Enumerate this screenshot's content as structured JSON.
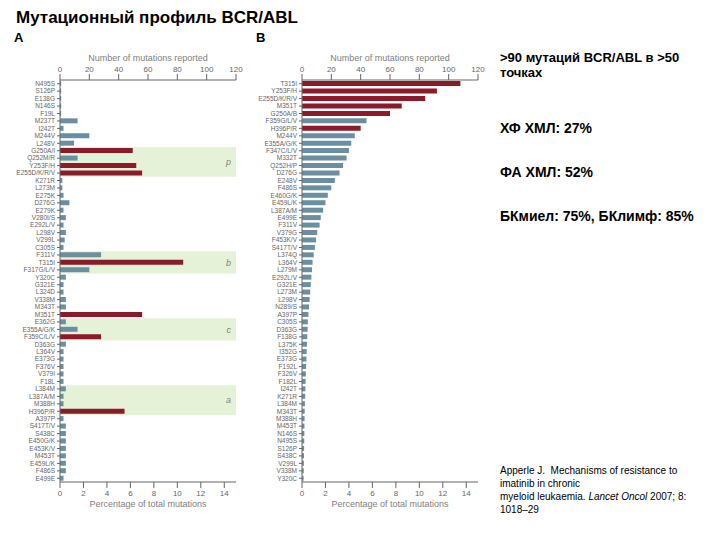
{
  "title": "Мутационный профиль BCR/ABL",
  "subtitle": ">90 мутаций BCR/ABL в >50 точках",
  "annotations": [
    "ХФ ХМЛ: 27%",
    "ФА ХМЛ: 52%",
    "БКмиел: 75%, БКлимф: 85%"
  ],
  "citation": [
    [
      "Apperle J.  Mechanisms of resistance to imatinib in chronic"
    ],
    [
      "myeloid leukaemia. ",
      "Lancet Oncol",
      " 2007; 8: 1018–29"
    ]
  ],
  "chart_data": [
    {
      "type": "bar",
      "orientation": "horizontal",
      "title": "A",
      "xlabel": "Percentage of total mutations",
      "x2label": "Number of mutations reported",
      "xlim": [
        0,
        15
      ],
      "xticks": [
        0,
        2,
        4,
        6,
        8,
        10,
        12,
        14
      ],
      "x2lim": [
        0,
        120
      ],
      "x2ticks": [
        0,
        20,
        40,
        60,
        80,
        100,
        120
      ],
      "grid": false,
      "categories": [
        "N495S",
        "S126P",
        "E138G",
        "N146S",
        "F19L",
        "M237T",
        "I242T",
        "M244V",
        "L248V",
        "G250A/I",
        "Q252M/R",
        "Y253F/H",
        "E255D/K/R/V",
        "K271R",
        "L273M",
        "E275K",
        "D276G",
        "E279K",
        "V280I/S",
        "E292L/V",
        "L298V",
        "V299L",
        "C305S",
        "F311V",
        "T315I",
        "F317G/L/V",
        "Y320C",
        "G321E",
        "L324D",
        "V338M",
        "M343T",
        "M351T",
        "E362G",
        "E355A/G/K",
        "F359C/L/V",
        "D363G",
        "L364V",
        "E373G",
        "F376V",
        "V379I",
        "F18L",
        "L384M",
        "L387A/M",
        "M388H",
        "H396P/R",
        "A397P",
        "S417T/V",
        "S438C",
        "E450G/K",
        "E453K/V",
        "M453T",
        "E459L/K",
        "F486S",
        "E499E"
      ],
      "values": [
        0.1,
        0.1,
        0.1,
        0.1,
        0.1,
        1.5,
        0.3,
        2.5,
        1.2,
        6.2,
        1.5,
        6.5,
        7.0,
        0.2,
        0.2,
        0.3,
        0.8,
        0.3,
        0.5,
        0.3,
        0.5,
        0.4,
        0.3,
        3.5,
        10.5,
        2.5,
        0.5,
        0.3,
        0.3,
        0.5,
        0.5,
        7.0,
        0.5,
        1.5,
        3.5,
        0.5,
        0.3,
        0.3,
        0.3,
        0.3,
        0.3,
        0.5,
        0.3,
        0.3,
        5.5,
        0.3,
        0.5,
        0.5,
        0.5,
        0.5,
        0.5,
        0.5,
        0.5,
        0.3
      ],
      "colors": [
        "#6b8fa0",
        "#6b8fa0",
        "#6b8fa0",
        "#6b8fa0",
        "#6b8fa0",
        "#6b8fa0",
        "#6b8fa0",
        "#6b8fa0",
        "#6b8fa0",
        "#8b1a2a",
        "#6b8fa0",
        "#8b1a2a",
        "#8b1a2a",
        "#6b8fa0",
        "#6b8fa0",
        "#6b8fa0",
        "#6b8fa0",
        "#6b8fa0",
        "#6b8fa0",
        "#6b8fa0",
        "#6b8fa0",
        "#6b8fa0",
        "#6b8fa0",
        "#6b8fa0",
        "#8b1a2a",
        "#6b8fa0",
        "#6b8fa0",
        "#6b8fa0",
        "#6b8fa0",
        "#6b8fa0",
        "#6b8fa0",
        "#8b1a2a",
        "#6b8fa0",
        "#6b8fa0",
        "#8b1a2a",
        "#6b8fa0",
        "#6b8fa0",
        "#6b8fa0",
        "#6b8fa0",
        "#6b8fa0",
        "#6b8fa0",
        "#6b8fa0",
        "#6b8fa0",
        "#6b8fa0",
        "#8b1a2a",
        "#6b8fa0",
        "#6b8fa0",
        "#6b8fa0",
        "#6b8fa0",
        "#6b8fa0",
        "#6b8fa0",
        "#6b8fa0",
        "#6b8fa0",
        "#6b8fa0"
      ],
      "highlights": [
        {
          "start": 9,
          "end": 12,
          "label": "p",
          "color": "#dcedc8"
        },
        {
          "start": 23,
          "end": 25,
          "label": "b",
          "color": "#dcedc8"
        },
        {
          "start": 32,
          "end": 34,
          "label": "c",
          "color": "#dcedc8"
        },
        {
          "start": 41,
          "end": 44,
          "label": "a",
          "color": "#dcedc8"
        }
      ]
    },
    {
      "type": "bar",
      "orientation": "horizontal",
      "title": "B",
      "xlabel": "Percentage of total mutations",
      "x2label": "Number of mutations reported",
      "xlim": [
        0,
        15
      ],
      "xticks": [
        0,
        2,
        4,
        6,
        8,
        10,
        12,
        14
      ],
      "x2lim": [
        0,
        120
      ],
      "x2ticks": [
        0,
        20,
        40,
        60,
        80,
        100,
        120
      ],
      "grid": false,
      "categories": [
        "T315I",
        "Y253F/H",
        "E255D/K/R/V",
        "M351T",
        "G250A/B",
        "F359G/L/V",
        "H396P/R",
        "M244V",
        "E355A/G/K",
        "F347C/L/V",
        "M332T",
        "Q252H/P",
        "D276G",
        "E248V",
        "F486S",
        "E460G/K",
        "E459L/K",
        "L387A/M",
        "E499E",
        "F311V",
        "V379G",
        "F453K/V",
        "S417T/V",
        "L374Q",
        "L364V",
        "L279M",
        "E292L/V",
        "G321E",
        "L273M",
        "L298V",
        "N289/S",
        "A397P",
        "C305S",
        "D363G",
        "F138G",
        "L375K",
        "I352G",
        "E373G",
        "F192L",
        "F326V",
        "F182L",
        "I242T",
        "K271R",
        "L384M",
        "M343T",
        "M388H",
        "M453T",
        "N146S",
        "N495S",
        "S126P",
        "S438C",
        "V299L",
        "V338M",
        "Y320C"
      ],
      "values": [
        13.5,
        11.5,
        10.5,
        8.5,
        7.5,
        5.5,
        5.0,
        4.5,
        4.2,
        4.0,
        3.8,
        3.5,
        3.2,
        2.8,
        2.5,
        2.2,
        2.0,
        1.8,
        1.6,
        1.5,
        1.3,
        1.2,
        1.1,
        1.0,
        0.9,
        0.85,
        0.8,
        0.75,
        0.7,
        0.65,
        0.6,
        0.55,
        0.5,
        0.48,
        0.45,
        0.42,
        0.4,
        0.38,
        0.35,
        0.33,
        0.31,
        0.29,
        0.27,
        0.25,
        0.23,
        0.22,
        0.21,
        0.2,
        0.19,
        0.18,
        0.17,
        0.16,
        0.15,
        0.14
      ],
      "colors": [
        "#8b1a2a",
        "#8b1a2a",
        "#8b1a2a",
        "#8b1a2a",
        "#8b1a2a",
        "#6b8fa0",
        "#8b1a2a",
        "#6b8fa0",
        "#6b8fa0",
        "#6b8fa0",
        "#6b8fa0",
        "#6b8fa0",
        "#6b8fa0",
        "#6b8fa0",
        "#6b8fa0",
        "#6b8fa0",
        "#6b8fa0",
        "#6b8fa0",
        "#6b8fa0",
        "#6b8fa0",
        "#6b8fa0",
        "#6b8fa0",
        "#6b8fa0",
        "#6b8fa0",
        "#6b8fa0",
        "#6b8fa0",
        "#6b8fa0",
        "#6b8fa0",
        "#6b8fa0",
        "#6b8fa0",
        "#6b8fa0",
        "#6b8fa0",
        "#6b8fa0",
        "#6b8fa0",
        "#6b8fa0",
        "#6b8fa0",
        "#6b8fa0",
        "#6b8fa0",
        "#6b8fa0",
        "#6b8fa0",
        "#6b8fa0",
        "#6b8fa0",
        "#6b8fa0",
        "#6b8fa0",
        "#6b8fa0",
        "#6b8fa0",
        "#6b8fa0",
        "#6b8fa0",
        "#6b8fa0",
        "#6b8fa0",
        "#6b8fa0",
        "#6b8fa0",
        "#6b8fa0",
        "#6b8fa0"
      ],
      "highlights": []
    }
  ]
}
